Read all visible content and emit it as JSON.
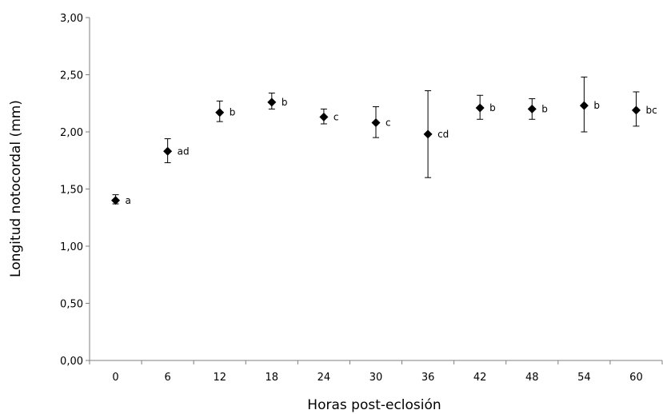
{
  "chart_data": {
    "type": "scatter",
    "title": "",
    "xlabel": "Horas post-eclosión",
    "ylabel": "Longitud notocordal (mm)",
    "categories": [
      "0",
      "6",
      "12",
      "18",
      "24",
      "30",
      "36",
      "42",
      "48",
      "54",
      "60"
    ],
    "ylim": [
      0,
      3
    ],
    "yticks": [
      "0,00",
      "0,50",
      "1,00",
      "1,50",
      "2,00",
      "2,50",
      "3,00"
    ],
    "grid": false,
    "legend": "none",
    "marker": "diamond",
    "marker_color": "#000000",
    "series": [
      {
        "values": [
          1.4,
          1.83,
          2.17,
          2.26,
          2.13,
          2.08,
          1.98,
          2.21,
          2.2,
          2.23,
          2.19
        ],
        "error_low": [
          1.37,
          1.73,
          2.09,
          2.2,
          2.07,
          1.95,
          1.6,
          2.11,
          2.11,
          2.0,
          2.05
        ],
        "error_high": [
          1.45,
          1.94,
          2.27,
          2.34,
          2.2,
          2.22,
          2.36,
          2.32,
          2.29,
          2.48,
          2.35
        ],
        "labels": [
          "a",
          "ad",
          "b",
          "b",
          "c",
          "c",
          "cd",
          "b",
          "b",
          "b",
          "bc"
        ]
      }
    ]
  }
}
